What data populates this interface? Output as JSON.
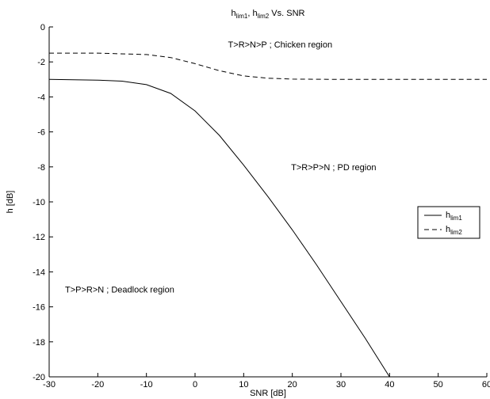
{
  "chart_data": {
    "type": "line",
    "title": {
      "h1": "h",
      "sub1": "lim1",
      "sep": ", ",
      "h2": "h",
      "sub2": "lim2",
      "suffix": " Vs. SNR"
    },
    "xlabel": "SNR [dB]",
    "ylabel": "h [dB]",
    "xlim": [
      -30,
      60
    ],
    "ylim": [
      -20,
      0
    ],
    "xticks": [
      -30,
      -20,
      -10,
      0,
      10,
      20,
      30,
      40,
      50,
      60
    ],
    "yticks": [
      0,
      -2,
      -4,
      -6,
      -8,
      -10,
      -12,
      -14,
      -16,
      -18,
      -20
    ],
    "grid": false,
    "legend_position": "right",
    "series": [
      {
        "name": "h",
        "name_sub": "lim1",
        "style": "solid",
        "x": [
          -30,
          -20,
          -15,
          -10,
          -5,
          0,
          5,
          10,
          15,
          20,
          25,
          30,
          35,
          40
        ],
        "y": [
          -3.0,
          -3.04,
          -3.1,
          -3.3,
          -3.8,
          -4.8,
          -6.2,
          -7.9,
          -9.7,
          -11.6,
          -13.6,
          -15.7,
          -17.8,
          -20.0
        ]
      },
      {
        "name": "h",
        "name_sub": "lim2",
        "style": "dashed",
        "x": [
          -30,
          -20,
          -10,
          -5,
          0,
          5,
          10,
          15,
          20,
          30,
          40,
          50,
          60
        ],
        "y": [
          -1.5,
          -1.5,
          -1.58,
          -1.75,
          -2.1,
          -2.5,
          -2.8,
          -2.93,
          -2.98,
          -3.0,
          -3.0,
          -3.0,
          -3.0
        ]
      }
    ],
    "annotations": [
      {
        "text": "T>R>N>P ; Chicken region",
        "x": 17.5,
        "y": -1.0
      },
      {
        "text": "T>R>P>N ; PD region",
        "x": 28.5,
        "y": -8.0
      },
      {
        "text": "T>P>R>N ; Deadlock region",
        "x": -15.5,
        "y": -15.0
      }
    ],
    "colors": {
      "line": "#000000",
      "axis": "#000000",
      "background": "#ffffff"
    }
  }
}
